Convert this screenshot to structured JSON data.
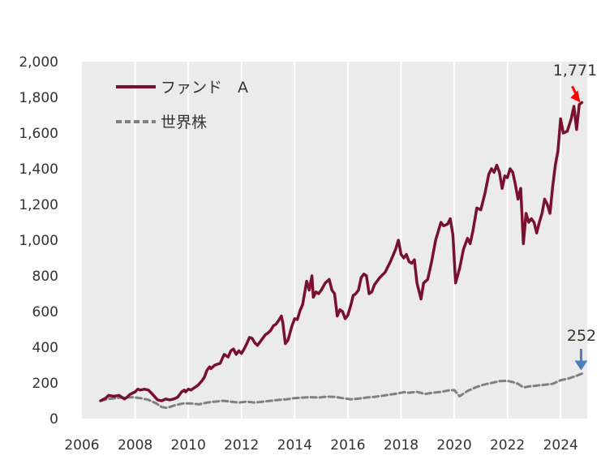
{
  "chart_data": {
    "type": "line",
    "title": "",
    "xlabel": "",
    "ylabel": "",
    "xlim": [
      2006,
      2025
    ],
    "ylim": [
      0,
      2000
    ],
    "xticks": [
      2006,
      2008,
      2010,
      2012,
      2014,
      2016,
      2018,
      2020,
      2022,
      2024
    ],
    "xtick_labels": [
      "2006",
      "2008",
      "2010",
      "2012",
      "2014",
      "2016",
      "2018",
      "2020",
      "2022",
      "2024"
    ],
    "yticks": [
      0,
      200,
      400,
      600,
      800,
      1000,
      1200,
      1400,
      1600,
      1800,
      2000
    ],
    "ytick_labels": [
      "0",
      "200",
      "400",
      "600",
      "800",
      "1,000",
      "1,200",
      "1,400",
      "1,600",
      "1,800",
      "2,000"
    ],
    "grid": "vertical",
    "legend_position": "top-left",
    "series": [
      {
        "name": "ファンド　A",
        "color": "#7a1030",
        "style": "solid",
        "end_label": "1,771",
        "end_arrow_color": "#ff0000",
        "points": [
          [
            2006.7,
            100
          ],
          [
            2006.9,
            115
          ],
          [
            2007.0,
            130
          ],
          [
            2007.2,
            125
          ],
          [
            2007.4,
            130
          ],
          [
            2007.6,
            110
          ],
          [
            2007.7,
            120
          ],
          [
            2007.8,
            135
          ],
          [
            2008.0,
            150
          ],
          [
            2008.1,
            165
          ],
          [
            2008.2,
            160
          ],
          [
            2008.35,
            165
          ],
          [
            2008.5,
            160
          ],
          [
            2008.6,
            145
          ],
          [
            2008.75,
            120
          ],
          [
            2008.85,
            105
          ],
          [
            2009.0,
            100
          ],
          [
            2009.15,
            110
          ],
          [
            2009.3,
            105
          ],
          [
            2009.45,
            110
          ],
          [
            2009.6,
            120
          ],
          [
            2009.75,
            150
          ],
          [
            2009.85,
            160
          ],
          [
            2009.9,
            150
          ],
          [
            2010.0,
            165
          ],
          [
            2010.1,
            160
          ],
          [
            2010.2,
            170
          ],
          [
            2010.35,
            185
          ],
          [
            2010.5,
            210
          ],
          [
            2010.6,
            230
          ],
          [
            2010.7,
            270
          ],
          [
            2010.8,
            290
          ],
          [
            2010.85,
            280
          ],
          [
            2011.0,
            300
          ],
          [
            2011.2,
            310
          ],
          [
            2011.35,
            360
          ],
          [
            2011.5,
            345
          ],
          [
            2011.6,
            380
          ],
          [
            2011.7,
            390
          ],
          [
            2011.8,
            360
          ],
          [
            2011.9,
            380
          ],
          [
            2012.0,
            365
          ],
          [
            2012.1,
            390
          ],
          [
            2012.2,
            420
          ],
          [
            2012.3,
            455
          ],
          [
            2012.4,
            450
          ],
          [
            2012.5,
            425
          ],
          [
            2012.6,
            410
          ],
          [
            2012.75,
            440
          ],
          [
            2012.9,
            470
          ],
          [
            2013.0,
            480
          ],
          [
            2013.1,
            495
          ],
          [
            2013.2,
            520
          ],
          [
            2013.3,
            530
          ],
          [
            2013.4,
            550
          ],
          [
            2013.5,
            575
          ],
          [
            2013.55,
            540
          ],
          [
            2013.65,
            420
          ],
          [
            2013.75,
            440
          ],
          [
            2013.9,
            520
          ],
          [
            2014.0,
            560
          ],
          [
            2014.1,
            555
          ],
          [
            2014.2,
            605
          ],
          [
            2014.3,
            640
          ],
          [
            2014.45,
            770
          ],
          [
            2014.55,
            720
          ],
          [
            2014.65,
            800
          ],
          [
            2014.7,
            680
          ],
          [
            2014.8,
            710
          ],
          [
            2014.9,
            700
          ],
          [
            2015.0,
            720
          ],
          [
            2015.15,
            760
          ],
          [
            2015.3,
            780
          ],
          [
            2015.4,
            720
          ],
          [
            2015.5,
            700
          ],
          [
            2015.6,
            575
          ],
          [
            2015.7,
            610
          ],
          [
            2015.8,
            600
          ],
          [
            2015.9,
            560
          ],
          [
            2016.0,
            580
          ],
          [
            2016.1,
            630
          ],
          [
            2016.2,
            690
          ],
          [
            2016.3,
            700
          ],
          [
            2016.4,
            720
          ],
          [
            2016.5,
            790
          ],
          [
            2016.6,
            810
          ],
          [
            2016.7,
            800
          ],
          [
            2016.8,
            700
          ],
          [
            2016.9,
            710
          ],
          [
            2017.0,
            750
          ],
          [
            2017.2,
            790
          ],
          [
            2017.4,
            820
          ],
          [
            2017.6,
            880
          ],
          [
            2017.8,
            950
          ],
          [
            2017.9,
            1000
          ],
          [
            2018.0,
            920
          ],
          [
            2018.1,
            900
          ],
          [
            2018.2,
            920
          ],
          [
            2018.3,
            880
          ],
          [
            2018.4,
            870
          ],
          [
            2018.5,
            890
          ],
          [
            2018.6,
            760
          ],
          [
            2018.75,
            670
          ],
          [
            2018.85,
            760
          ],
          [
            2019.0,
            780
          ],
          [
            2019.15,
            880
          ],
          [
            2019.3,
            1000
          ],
          [
            2019.4,
            1050
          ],
          [
            2019.5,
            1100
          ],
          [
            2019.6,
            1080
          ],
          [
            2019.75,
            1090
          ],
          [
            2019.85,
            1120
          ],
          [
            2019.95,
            1030
          ],
          [
            2020.05,
            760
          ],
          [
            2020.2,
            840
          ],
          [
            2020.35,
            950
          ],
          [
            2020.5,
            1010
          ],
          [
            2020.6,
            980
          ],
          [
            2020.7,
            1050
          ],
          [
            2020.85,
            1180
          ],
          [
            2021.0,
            1170
          ],
          [
            2021.15,
            1260
          ],
          [
            2021.3,
            1370
          ],
          [
            2021.4,
            1400
          ],
          [
            2021.5,
            1380
          ],
          [
            2021.6,
            1420
          ],
          [
            2021.7,
            1380
          ],
          [
            2021.8,
            1290
          ],
          [
            2021.9,
            1360
          ],
          [
            2022.0,
            1350
          ],
          [
            2022.1,
            1400
          ],
          [
            2022.2,
            1380
          ],
          [
            2022.3,
            1310
          ],
          [
            2022.4,
            1230
          ],
          [
            2022.5,
            1290
          ],
          [
            2022.6,
            980
          ],
          [
            2022.7,
            1150
          ],
          [
            2022.8,
            1100
          ],
          [
            2022.9,
            1120
          ],
          [
            2023.0,
            1100
          ],
          [
            2023.1,
            1040
          ],
          [
            2023.2,
            1100
          ],
          [
            2023.3,
            1150
          ],
          [
            2023.4,
            1230
          ],
          [
            2023.5,
            1200
          ],
          [
            2023.6,
            1150
          ],
          [
            2023.7,
            1300
          ],
          [
            2023.8,
            1420
          ],
          [
            2023.9,
            1500
          ],
          [
            2024.0,
            1680
          ],
          [
            2024.1,
            1600
          ],
          [
            2024.25,
            1610
          ],
          [
            2024.4,
            1680
          ],
          [
            2024.5,
            1750
          ],
          [
            2024.6,
            1620
          ],
          [
            2024.7,
            1760
          ],
          [
            2024.8,
            1771
          ]
        ]
      },
      {
        "name": "世界株",
        "color": "#808080",
        "style": "dashed",
        "end_label": "252",
        "end_arrow_color": "#4a7fc0",
        "points": [
          [
            2006.7,
            100
          ],
          [
            2007.0,
            110
          ],
          [
            2007.3,
            115
          ],
          [
            2007.6,
            118
          ],
          [
            2007.9,
            120
          ],
          [
            2008.2,
            115
          ],
          [
            2008.5,
            105
          ],
          [
            2008.8,
            85
          ],
          [
            2009.0,
            65
          ],
          [
            2009.2,
            60
          ],
          [
            2009.5,
            75
          ],
          [
            2009.8,
            85
          ],
          [
            2010.1,
            85
          ],
          [
            2010.4,
            80
          ],
          [
            2010.7,
            90
          ],
          [
            2011.0,
            95
          ],
          [
            2011.3,
            100
          ],
          [
            2011.6,
            95
          ],
          [
            2011.9,
            90
          ],
          [
            2012.2,
            95
          ],
          [
            2012.5,
            90
          ],
          [
            2012.8,
            95
          ],
          [
            2013.1,
            100
          ],
          [
            2013.4,
            105
          ],
          [
            2013.7,
            108
          ],
          [
            2014.0,
            115
          ],
          [
            2014.3,
            118
          ],
          [
            2014.6,
            120
          ],
          [
            2014.9,
            118
          ],
          [
            2015.2,
            123
          ],
          [
            2015.5,
            122
          ],
          [
            2015.8,
            115
          ],
          [
            2016.1,
            108
          ],
          [
            2016.4,
            112
          ],
          [
            2016.7,
            118
          ],
          [
            2017.0,
            122
          ],
          [
            2017.3,
            128
          ],
          [
            2017.6,
            135
          ],
          [
            2017.9,
            142
          ],
          [
            2018.1,
            148
          ],
          [
            2018.3,
            145
          ],
          [
            2018.6,
            150
          ],
          [
            2018.9,
            138
          ],
          [
            2019.2,
            145
          ],
          [
            2019.5,
            150
          ],
          [
            2019.8,
            158
          ],
          [
            2020.0,
            160
          ],
          [
            2020.2,
            125
          ],
          [
            2020.5,
            155
          ],
          [
            2020.8,
            175
          ],
          [
            2021.1,
            190
          ],
          [
            2021.4,
            200
          ],
          [
            2021.7,
            210
          ],
          [
            2022.0,
            212
          ],
          [
            2022.2,
            205
          ],
          [
            2022.4,
            195
          ],
          [
            2022.6,
            175
          ],
          [
            2022.8,
            180
          ],
          [
            2023.1,
            185
          ],
          [
            2023.4,
            190
          ],
          [
            2023.7,
            195
          ],
          [
            2024.0,
            215
          ],
          [
            2024.3,
            225
          ],
          [
            2024.6,
            240
          ],
          [
            2024.8,
            252
          ]
        ]
      }
    ]
  }
}
